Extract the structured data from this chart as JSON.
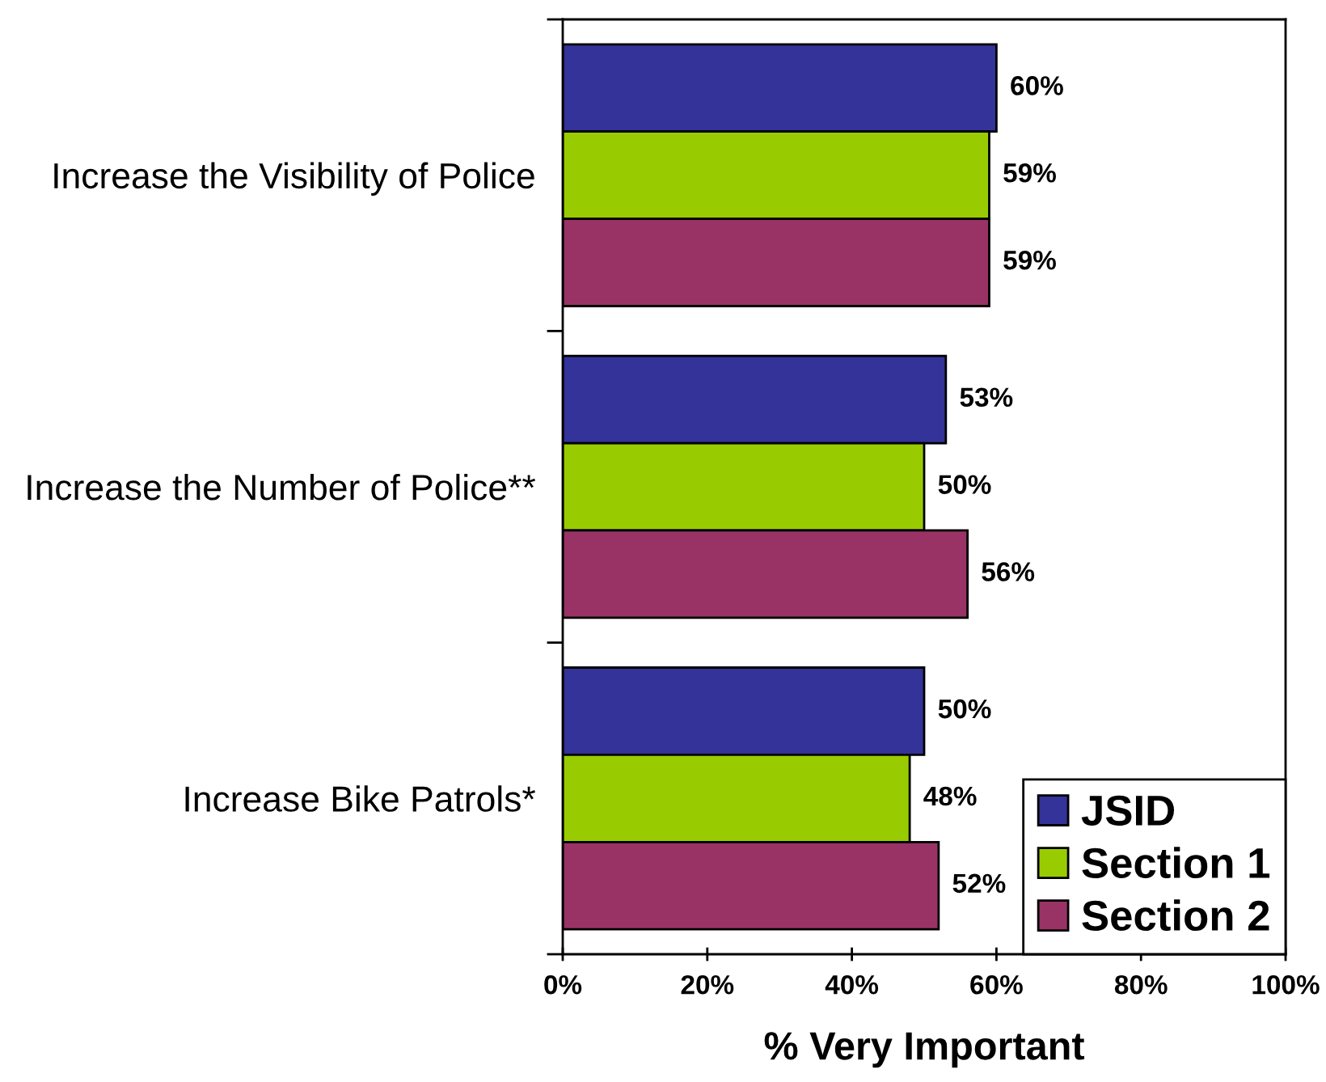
{
  "chart_data": {
    "type": "bar",
    "orientation": "horizontal",
    "xlabel": "% Very Important",
    "categories": [
      "Increase the Visibility of Police",
      "Increase the Number of Police**",
      "Increase Bike Patrols*"
    ],
    "series": [
      {
        "name": "JSID",
        "color": "#333399",
        "values": [
          60,
          53,
          50
        ],
        "value_labels": [
          "60%",
          "53%",
          "50%"
        ]
      },
      {
        "name": "Section 1",
        "color": "#99cc00",
        "values": [
          59,
          50,
          48
        ],
        "value_labels": [
          "59%",
          "50%",
          "48%"
        ]
      },
      {
        "name": "Section 2",
        "color": "#993366",
        "values": [
          59,
          56,
          52
        ],
        "value_labels": [
          "59%",
          "56%",
          "52%"
        ]
      }
    ],
    "xlim": [
      0,
      100
    ],
    "xticks": [
      {
        "value": 0,
        "label": "0%"
      },
      {
        "value": 20,
        "label": "20%"
      },
      {
        "value": 40,
        "label": "40%"
      },
      {
        "value": 60,
        "label": "60%"
      },
      {
        "value": 80,
        "label": "80%"
      },
      {
        "value": 100,
        "label": "100%"
      }
    ],
    "legend": "bottom right"
  }
}
